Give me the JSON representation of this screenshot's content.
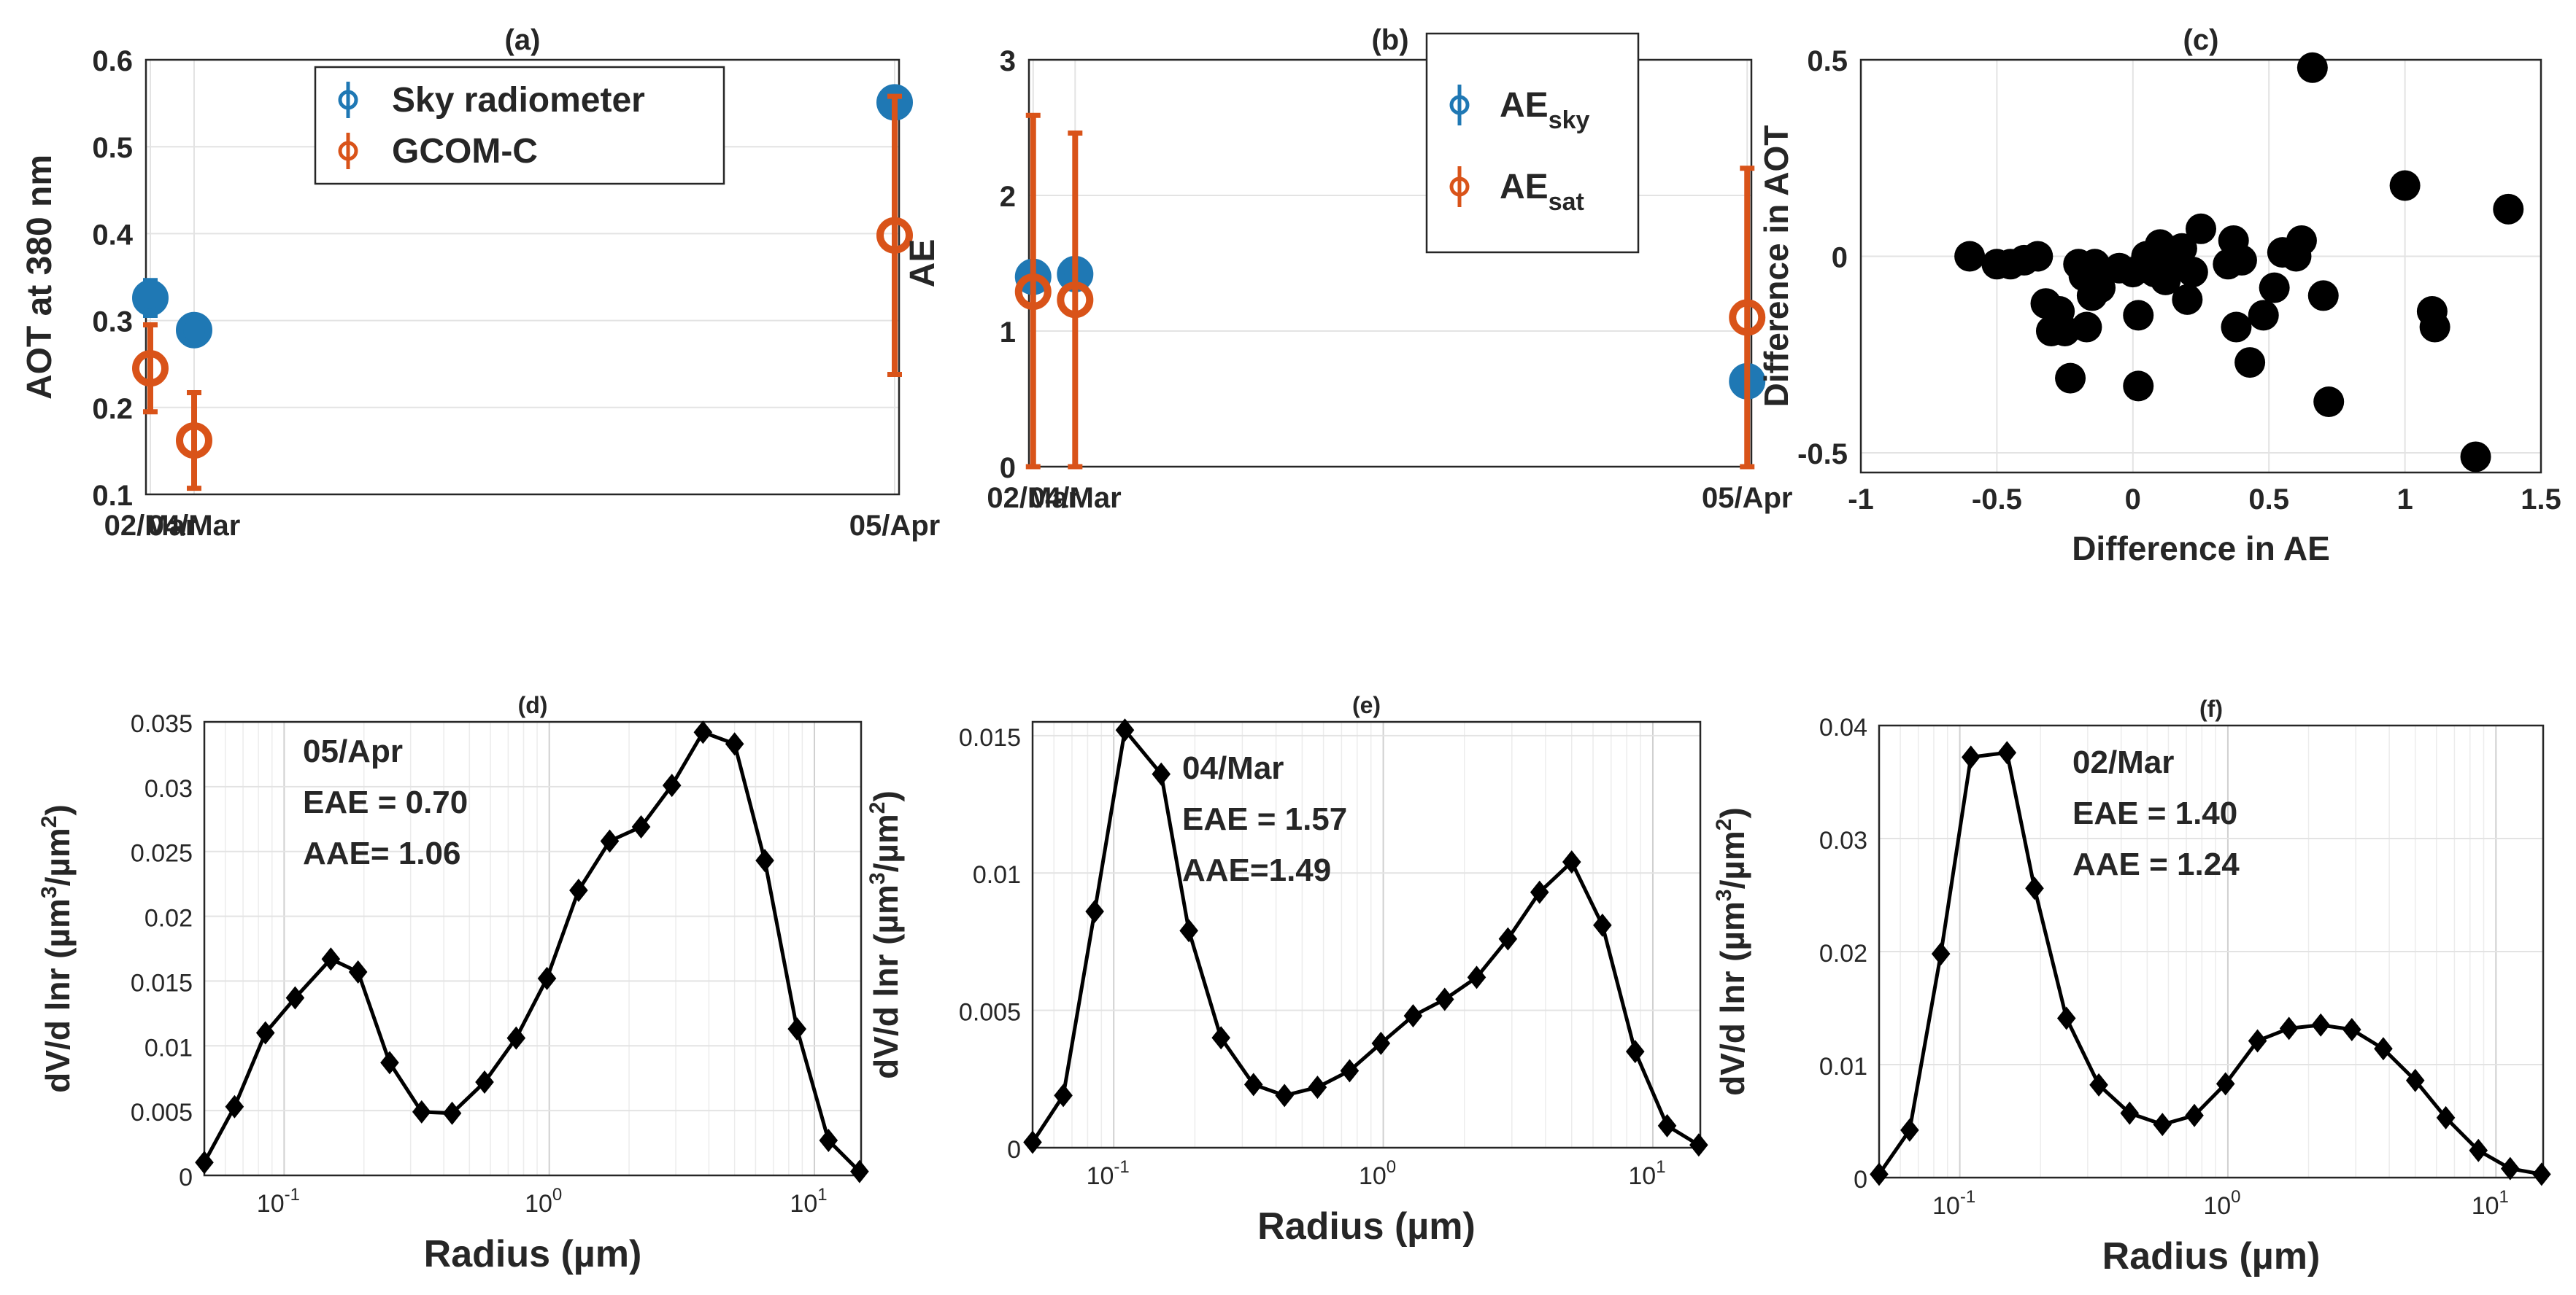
{
  "colors": {
    "sky": "#1f78b4",
    "gcom": "#d95319",
    "axis": "#262626",
    "grid": "#e3e3e3",
    "marker": "#000000"
  },
  "chart_data": [
    {
      "id": "a",
      "type": "errorbar",
      "title": "(a)",
      "ylabel": "AOT at 380 nm",
      "xlabel": "",
      "categories": [
        "02/Mar",
        "04/Mar",
        "05/Apr"
      ],
      "x": [
        1,
        3,
        35
      ],
      "xlim": [
        0.8,
        35.2
      ],
      "ylim": [
        0.1,
        0.6
      ],
      "yticks": [
        0.1,
        0.2,
        0.3,
        0.4,
        0.5,
        0.6
      ],
      "yticklabels": [
        "0.1",
        "0.2",
        "0.3",
        "0.4",
        "0.5",
        "0.6"
      ],
      "legend": "top-center",
      "series": [
        {
          "name": "Sky radiometer",
          "color": "#1f78b4",
          "values": [
            0.326,
            0.289,
            0.551
          ],
          "err": [
            0.02,
            0.008,
            0.008
          ]
        },
        {
          "name": "GCOM-C",
          "color": "#d95319",
          "values": [
            0.245,
            0.162,
            0.398
          ],
          "err": [
            0.05,
            0.055,
            0.16
          ]
        }
      ]
    },
    {
      "id": "b",
      "type": "errorbar",
      "title": "(b)",
      "ylabel": "AE",
      "xlabel": "",
      "categories": [
        "02/Mar",
        "04/Mar",
        "05/Apr"
      ],
      "x": [
        1,
        3,
        35
      ],
      "xlim": [
        0.8,
        35.2
      ],
      "ylim": [
        0,
        3
      ],
      "yticks": [
        0,
        1,
        2,
        3
      ],
      "yticklabels": [
        "0",
        "1",
        "2",
        "3"
      ],
      "legend": "top-right",
      "series": [
        {
          "name": "AE",
          "sub": "sky",
          "color": "#1f78b4",
          "values": [
            1.4,
            1.42,
            0.63
          ],
          "err": [
            0.05,
            0.05,
            0.1
          ]
        },
        {
          "name": "AE",
          "sub": "sat",
          "color": "#d95319",
          "values": [
            1.29,
            1.23,
            1.1
          ],
          "err": [
            1.3,
            1.23,
            1.1
          ]
        }
      ]
    },
    {
      "id": "c",
      "type": "scatter",
      "title": "(c)",
      "xlabel": "Difference in AE",
      "ylabel": "Difference in AOT",
      "xlim": [
        -1,
        1.5
      ],
      "ylim": [
        -0.55,
        0.5
      ],
      "xticks": [
        -1,
        -0.5,
        0,
        0.5,
        1,
        1.5
      ],
      "xticklabels": [
        "-1",
        "-0.5",
        "0",
        "0.5",
        "1",
        "1.5"
      ],
      "yticks": [
        -0.5,
        0,
        0.5
      ],
      "yticklabels": [
        "-0.5",
        "0",
        "0.5"
      ],
      "points": [
        [
          -0.6,
          0.0
        ],
        [
          -0.5,
          -0.02
        ],
        [
          -0.45,
          -0.02
        ],
        [
          -0.4,
          -0.01
        ],
        [
          -0.35,
          0.0
        ],
        [
          -0.32,
          -0.12
        ],
        [
          -0.3,
          -0.19
        ],
        [
          -0.27,
          -0.14
        ],
        [
          -0.25,
          -0.19
        ],
        [
          -0.23,
          -0.31
        ],
        [
          -0.2,
          -0.02
        ],
        [
          -0.18,
          -0.05
        ],
        [
          -0.17,
          -0.18
        ],
        [
          -0.15,
          -0.1
        ],
        [
          -0.14,
          -0.02
        ],
        [
          -0.12,
          -0.08
        ],
        [
          -0.05,
          -0.03
        ],
        [
          0.0,
          -0.04
        ],
        [
          0.02,
          -0.15
        ],
        [
          0.02,
          -0.33
        ],
        [
          0.05,
          0.0
        ],
        [
          0.08,
          -0.04
        ],
        [
          0.1,
          0.03
        ],
        [
          0.12,
          -0.06
        ],
        [
          0.15,
          -0.01
        ],
        [
          0.18,
          0.02
        ],
        [
          0.2,
          -0.11
        ],
        [
          0.22,
          -0.04
        ],
        [
          0.25,
          0.07
        ],
        [
          0.35,
          -0.02
        ],
        [
          0.37,
          0.04
        ],
        [
          0.38,
          -0.18
        ],
        [
          0.4,
          -0.01
        ],
        [
          0.43,
          -0.27
        ],
        [
          0.48,
          -0.15
        ],
        [
          0.52,
          -0.08
        ],
        [
          0.55,
          0.01
        ],
        [
          0.6,
          0.0
        ],
        [
          0.62,
          0.04
        ],
        [
          0.66,
          0.48
        ],
        [
          0.7,
          -0.1
        ],
        [
          0.72,
          -0.37
        ],
        [
          1.0,
          0.18
        ],
        [
          1.1,
          -0.14
        ],
        [
          1.11,
          -0.18
        ],
        [
          1.26,
          -0.51
        ],
        [
          1.38,
          0.12
        ]
      ]
    },
    {
      "id": "d",
      "type": "line",
      "xscale": "log",
      "title": "(d)",
      "xlabel": "Radius (µm)",
      "ylabel_main": "dV/d lnr (µm",
      "ylabel_sup1": "3",
      "ylabel_mid": "/µm",
      "ylabel_sup2": "2",
      "ylabel_end": ")",
      "xlim": [
        0.05,
        15
      ],
      "ylim": [
        0,
        0.035
      ],
      "yticks": [
        0,
        0.005,
        0.01,
        0.015,
        0.02,
        0.025,
        0.03,
        0.035
      ],
      "yticklabels": [
        "0",
        "0.005",
        "0.01",
        "0.015",
        "0.02",
        "0.025",
        "0.03",
        "0.035"
      ],
      "xticklabels": [
        "10",
        "-1",
        "10",
        "0",
        "10",
        "1"
      ],
      "annotation": [
        "05/Apr",
        "EAE = 0.70",
        "AAE= 1.06"
      ],
      "x": [
        0.05,
        0.065,
        0.085,
        0.11,
        0.15,
        0.19,
        0.25,
        0.33,
        0.43,
        0.57,
        0.75,
        0.98,
        1.29,
        1.69,
        2.22,
        2.9,
        3.8,
        5.0,
        6.5,
        8.6,
        11.3,
        14.8
      ],
      "values": [
        0.001,
        0.0053,
        0.011,
        0.0137,
        0.0167,
        0.0157,
        0.0087,
        0.0049,
        0.0048,
        0.0072,
        0.0106,
        0.0152,
        0.022,
        0.0258,
        0.0269,
        0.0301,
        0.0342,
        0.0333,
        0.0243,
        0.0113,
        0.0027,
        0.0003
      ]
    },
    {
      "id": "e",
      "type": "line",
      "xscale": "log",
      "title": "(e)",
      "xlabel": "Radius (µm)",
      "ylabel_main": "dV/d lnr (µm",
      "ylabel_sup1": "3",
      "ylabel_mid": "/µm",
      "ylabel_sup2": "2",
      "ylabel_end": ")",
      "xlim": [
        0.05,
        15
      ],
      "ylim": [
        0,
        0.0155
      ],
      "yticks": [
        0,
        0.005,
        0.01,
        0.015
      ],
      "yticklabels": [
        "0",
        "0.005",
        "0.01",
        "0.015"
      ],
      "xticklabels": [
        "10",
        "-1",
        "10",
        "0",
        "10",
        "1"
      ],
      "annotation": [
        "04/Mar",
        "EAE = 1.57",
        "AAE=1.49"
      ],
      "x": [
        0.05,
        0.065,
        0.085,
        0.11,
        0.15,
        0.19,
        0.25,
        0.33,
        0.43,
        0.57,
        0.75,
        0.98,
        1.29,
        1.69,
        2.22,
        2.9,
        3.8,
        5.0,
        6.5,
        8.6,
        11.3,
        14.8
      ],
      "values": [
        0.0002,
        0.0019,
        0.0086,
        0.0152,
        0.0136,
        0.0079,
        0.004,
        0.0023,
        0.0019,
        0.0022,
        0.0028,
        0.0038,
        0.0048,
        0.0054,
        0.0062,
        0.0076,
        0.0093,
        0.0104,
        0.0081,
        0.0035,
        0.0008,
        0.0001
      ]
    },
    {
      "id": "f",
      "type": "line",
      "xscale": "log",
      "title": "(f)",
      "xlabel": "Radius (µm)",
      "ylabel_main": "dV/d lnr (µm",
      "ylabel_sup1": "3",
      "ylabel_mid": "/µm",
      "ylabel_sup2": "2",
      "ylabel_end": ")",
      "xlim": [
        0.05,
        15
      ],
      "ylim": [
        0,
        0.04
      ],
      "yticks": [
        0,
        0.01,
        0.02,
        0.03,
        0.04
      ],
      "yticklabels": [
        "0",
        "0.01",
        "0.02",
        "0.03",
        "0.04"
      ],
      "xticklabels": [
        "10",
        "-1",
        "10",
        "0",
        "10",
        "1"
      ],
      "annotation": [
        "02/Mar",
        "EAE = 1.40",
        "AAE = 1.24"
      ],
      "x": [
        0.05,
        0.065,
        0.085,
        0.11,
        0.15,
        0.19,
        0.25,
        0.33,
        0.43,
        0.57,
        0.75,
        0.98,
        1.29,
        1.69,
        2.22,
        2.9,
        3.8,
        5.0,
        6.5,
        8.6,
        11.3,
        14.8
      ],
      "values": [
        0.0003,
        0.0042,
        0.0198,
        0.0372,
        0.0376,
        0.0256,
        0.0141,
        0.0082,
        0.0057,
        0.0047,
        0.0055,
        0.0083,
        0.0121,
        0.0132,
        0.0135,
        0.0131,
        0.0114,
        0.0086,
        0.0053,
        0.0024,
        0.0008,
        0.0003
      ]
    }
  ]
}
